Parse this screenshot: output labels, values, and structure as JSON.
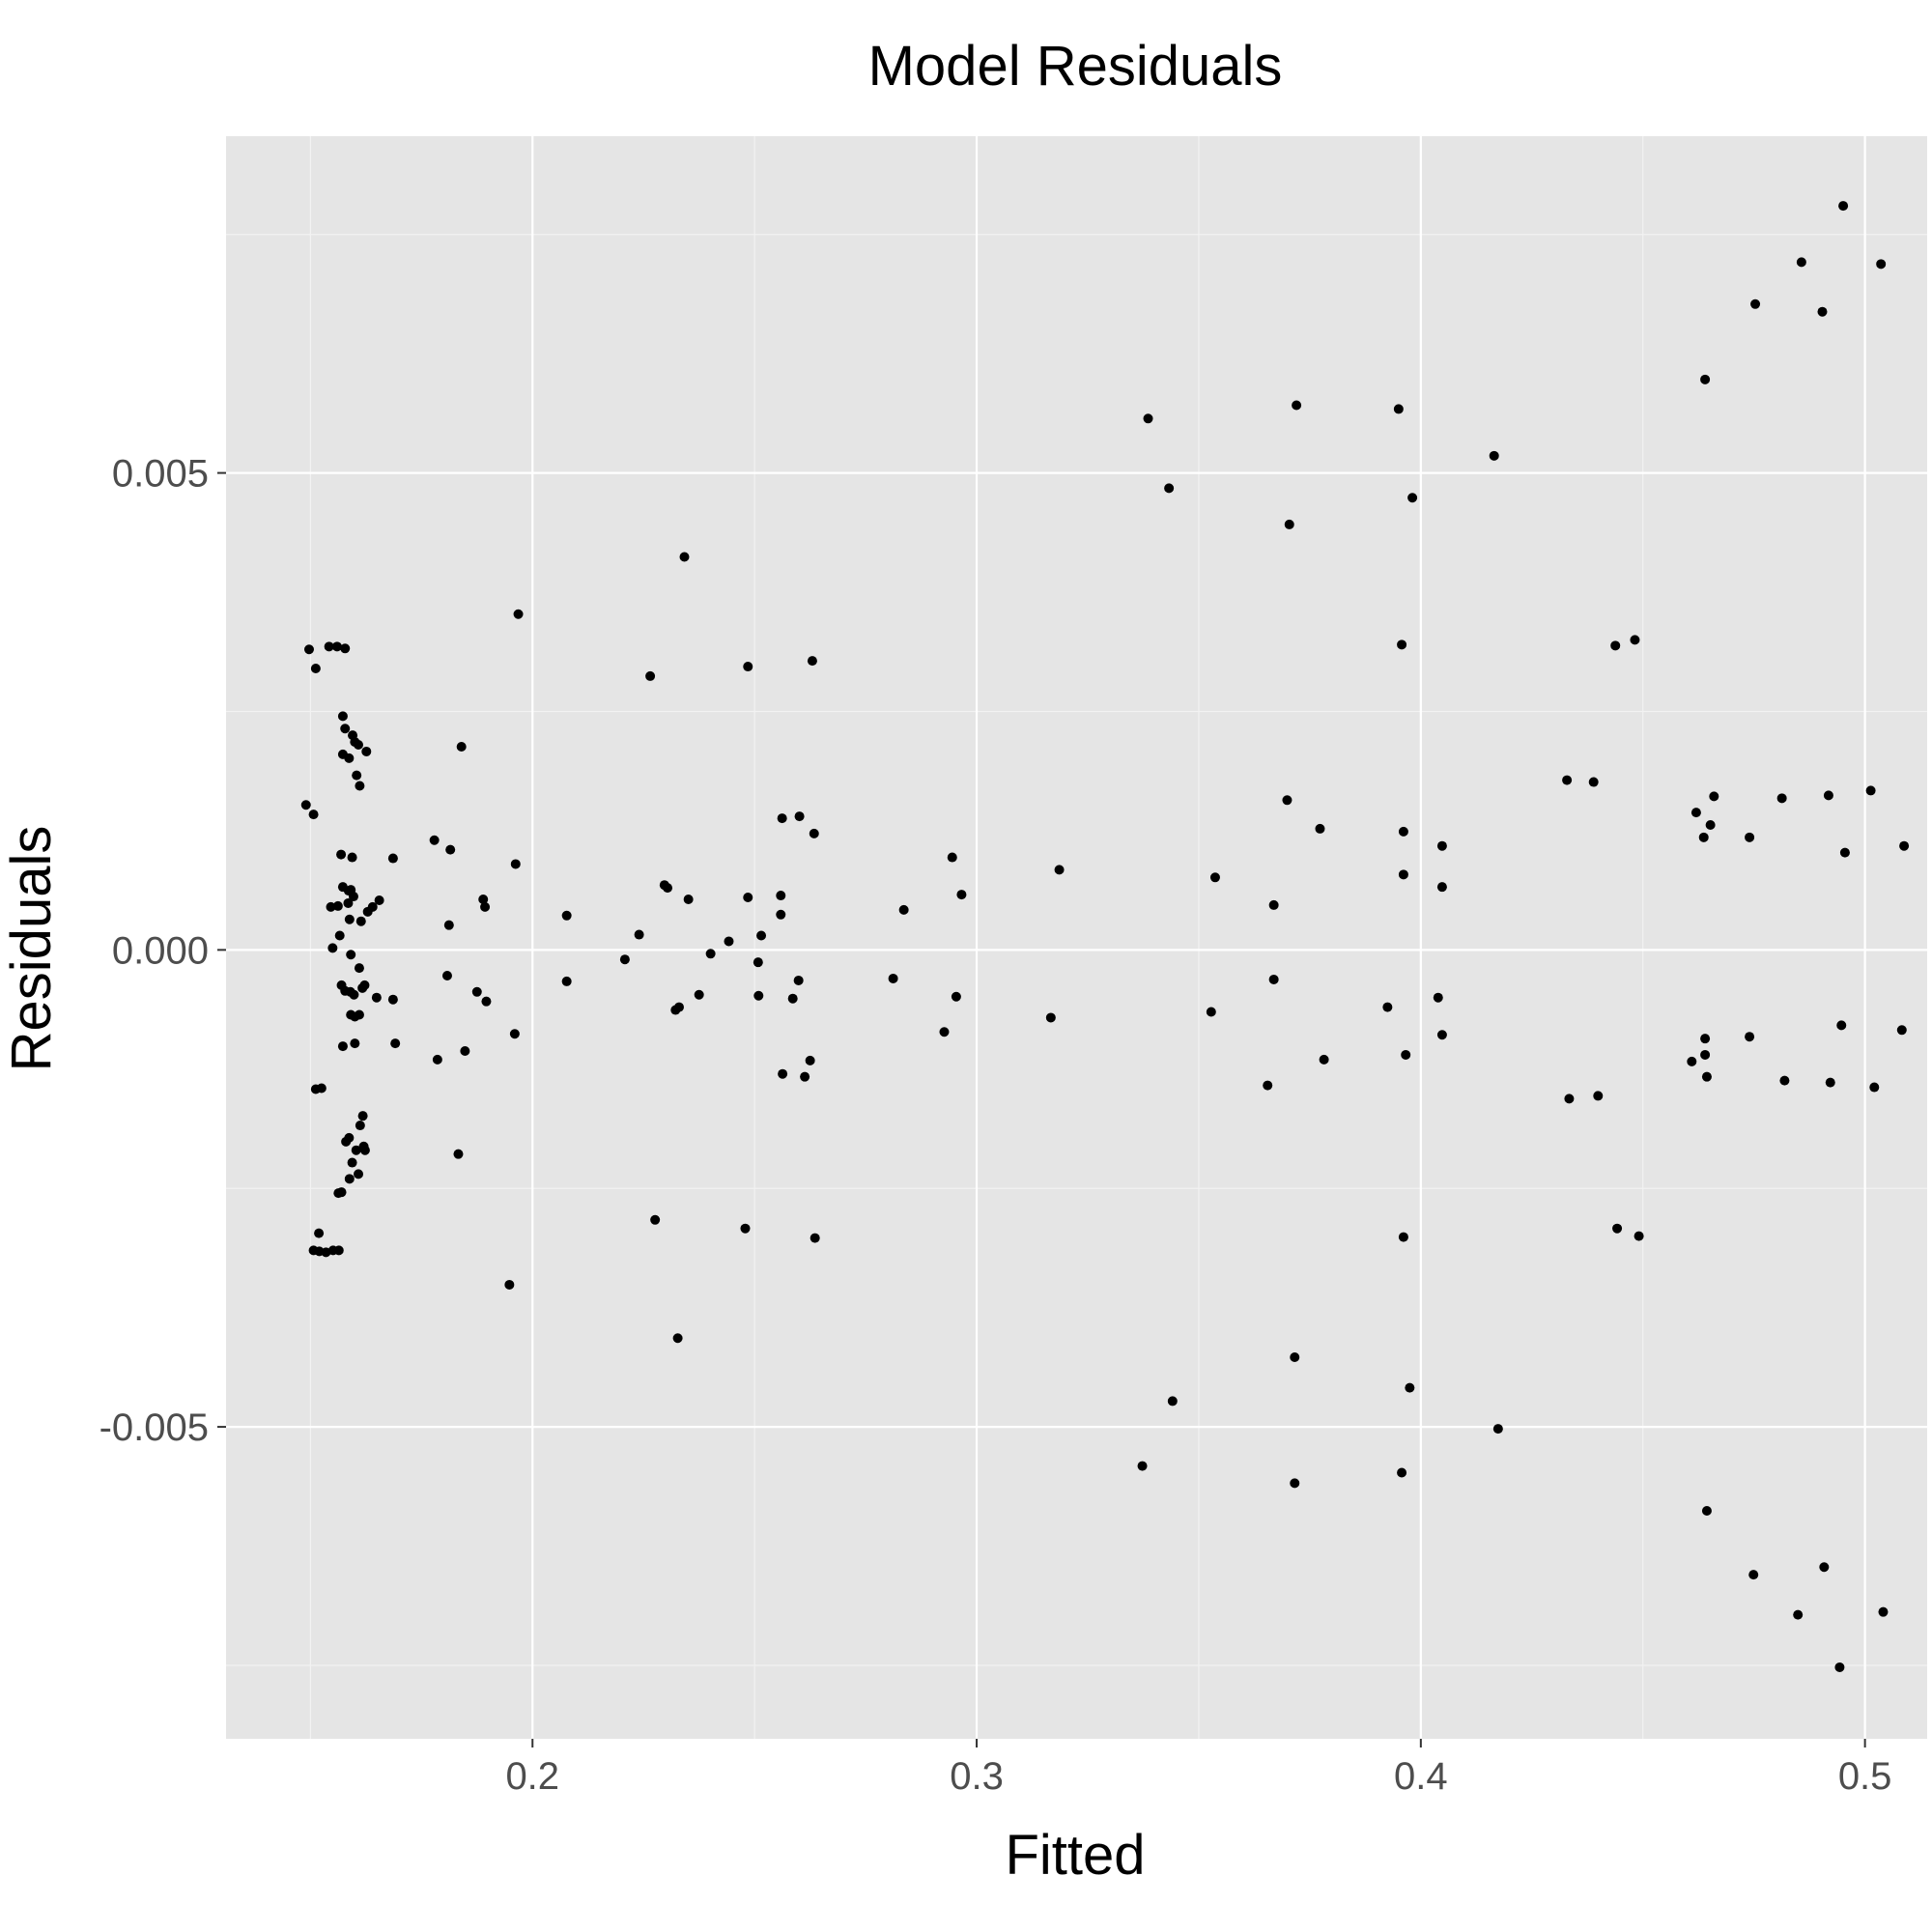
{
  "colors": {
    "panel_background": "#e5e5e5",
    "grid_major": "#ffffff",
    "grid_minor": "#f2f2f2",
    "point": "#000000",
    "tick_label": "#4d4d4d",
    "text": "#000000"
  },
  "chart_data": {
    "type": "scatter",
    "title": "Model Residuals",
    "xlabel": "Fitted",
    "ylabel": "Residuals",
    "xlim": [
      0.131,
      0.514
    ],
    "ylim": [
      -0.00827,
      0.00853
    ],
    "x_ticks": [
      0.2,
      0.3,
      0.4,
      0.5
    ],
    "x_tick_labels": [
      "0.2",
      "0.3",
      "0.4",
      "0.5"
    ],
    "y_ticks": [
      -0.005,
      0.0,
      0.005
    ],
    "y_tick_labels": [
      "-0.005",
      "0.000",
      "0.005"
    ],
    "grid": true,
    "legend": "none",
    "series": [
      {
        "points": [
          [
            0.1497,
            0.00315
          ],
          [
            0.1512,
            0.00295
          ],
          [
            0.1542,
            0.00318
          ],
          [
            0.156,
            0.00318
          ],
          [
            0.1578,
            0.00316
          ],
          [
            0.149,
            0.00152
          ],
          [
            0.1507,
            0.00142
          ],
          [
            0.1573,
            0.00245
          ],
          [
            0.1578,
            0.00232
          ],
          [
            0.1595,
            0.00225
          ],
          [
            0.1608,
            0.00215
          ],
          [
            0.1626,
            0.00208
          ],
          [
            0.1573,
            0.00205
          ],
          [
            0.1587,
            0.00201
          ],
          [
            0.16,
            0.00218
          ],
          [
            0.1604,
            0.00183
          ],
          [
            0.1611,
            0.00172
          ],
          [
            0.1569,
            0.001
          ],
          [
            0.1594,
            0.00097
          ],
          [
            0.1686,
            0.00096
          ],
          [
            0.1573,
            0.00066
          ],
          [
            0.1586,
            0.00062
          ],
          [
            0.1591,
            0.00063
          ],
          [
            0.1597,
            0.00056
          ],
          [
            0.1546,
            0.00045
          ],
          [
            0.1562,
            0.00046
          ],
          [
            0.1585,
            0.00049
          ],
          [
            0.164,
            0.00045
          ],
          [
            0.1655,
            0.00052
          ],
          [
            0.1629,
            0.0004
          ],
          [
            0.1614,
            0.0003
          ],
          [
            0.1588,
            0.00032
          ],
          [
            0.155,
            2e-05
          ],
          [
            0.1566,
            0.00015
          ],
          [
            0.1591,
            -5e-05
          ],
          [
            0.161,
            -0.00019
          ],
          [
            0.157,
            -0.00037
          ],
          [
            0.1578,
            -0.00043
          ],
          [
            0.159,
            -0.00044
          ],
          [
            0.1598,
            -0.00047
          ],
          [
            0.1617,
            -0.0004
          ],
          [
            0.1622,
            -0.00037
          ],
          [
            0.1649,
            -0.0005
          ],
          [
            0.1686,
            -0.00052
          ],
          [
            0.1591,
            -0.00068
          ],
          [
            0.16,
            -0.0007
          ],
          [
            0.161,
            -0.00068
          ],
          [
            0.1573,
            -0.00101
          ],
          [
            0.16,
            -0.00098
          ],
          [
            0.1691,
            -0.00098
          ],
          [
            0.1512,
            -0.00146
          ],
          [
            0.1525,
            -0.00145
          ],
          [
            0.1618,
            -0.00174
          ],
          [
            0.1612,
            -0.00184
          ],
          [
            0.158,
            -0.00201
          ],
          [
            0.1587,
            -0.00197
          ],
          [
            0.162,
            -0.00206
          ],
          [
            0.1603,
            -0.0021
          ],
          [
            0.1623,
            -0.0021
          ],
          [
            0.1594,
            -0.00223
          ],
          [
            0.1608,
            -0.00235
          ],
          [
            0.1588,
            -0.0024
          ],
          [
            0.157,
            -0.00254
          ],
          [
            0.1563,
            -0.00255
          ],
          [
            0.1519,
            -0.00297
          ],
          [
            0.1507,
            -0.00315
          ],
          [
            0.152,
            -0.00316
          ],
          [
            0.1535,
            -0.00317
          ],
          [
            0.1551,
            -0.00315
          ],
          [
            0.1564,
            -0.00315
          ],
          [
            0.1779,
            0.00115
          ],
          [
            0.1815,
            0.00105
          ],
          [
            0.184,
            0.00213
          ],
          [
            0.1812,
            0.00026
          ],
          [
            0.1889,
            0.00053
          ],
          [
            0.1893,
            0.00045
          ],
          [
            0.1962,
            0.0009
          ],
          [
            0.1968,
            0.00352
          ],
          [
            0.1808,
            -0.00027
          ],
          [
            0.1875,
            -0.00044
          ],
          [
            0.1896,
            -0.00054
          ],
          [
            0.1848,
            -0.00106
          ],
          [
            0.1786,
            -0.00115
          ],
          [
            0.1833,
            -0.00214
          ],
          [
            0.196,
            -0.00088
          ],
          [
            0.1948,
            -0.00351
          ],
          [
            0.2077,
            0.00036
          ],
          [
            0.2077,
            -0.00033
          ],
          [
            0.2208,
            -0.0001
          ],
          [
            0.224,
            0.00016
          ],
          [
            0.2265,
            0.00287
          ],
          [
            0.2297,
            0.00068
          ],
          [
            0.2304,
            0.00065
          ],
          [
            0.2351,
            0.00053
          ],
          [
            0.2342,
            0.00412
          ],
          [
            0.2322,
            -0.00063
          ],
          [
            0.233,
            -0.0006
          ],
          [
            0.2375,
            -0.00047
          ],
          [
            0.2401,
            -4e-05
          ],
          [
            0.2442,
            9e-05
          ],
          [
            0.2276,
            -0.00283
          ],
          [
            0.2327,
            -0.00407
          ],
          [
            0.2485,
            0.00055
          ],
          [
            0.2485,
            0.00297
          ],
          [
            0.2508,
            -0.00013
          ],
          [
            0.2515,
            0.00015
          ],
          [
            0.2509,
            -0.00048
          ],
          [
            0.2559,
            0.00057
          ],
          [
            0.2559,
            0.00037
          ],
          [
            0.2562,
            0.00138
          ],
          [
            0.2601,
            0.0014
          ],
          [
            0.2586,
            -0.00051
          ],
          [
            0.2599,
            -0.00032
          ],
          [
            0.2563,
            -0.0013
          ],
          [
            0.2613,
            -0.00133
          ],
          [
            0.2625,
            -0.00116
          ],
          [
            0.2634,
            0.00122
          ],
          [
            0.263,
            0.00303
          ],
          [
            0.2479,
            -0.00292
          ],
          [
            0.2636,
            -0.00302
          ],
          [
            0.2812,
            -0.0003
          ],
          [
            0.2836,
            0.00042
          ],
          [
            0.2927,
            -0.00086
          ],
          [
            0.2945,
            0.00097
          ],
          [
            0.2954,
            -0.00049
          ],
          [
            0.2966,
            0.00058
          ],
          [
            0.3167,
            -0.00071
          ],
          [
            0.3186,
            0.00084
          ],
          [
            0.3386,
            0.00557
          ],
          [
            0.3433,
            0.00484
          ],
          [
            0.3373,
            -0.00541
          ],
          [
            0.3441,
            -0.00473
          ],
          [
            0.3537,
            0.00076
          ],
          [
            0.3528,
            -0.00065
          ],
          [
            0.3655,
            -0.00142
          ],
          [
            0.3669,
            0.00047
          ],
          [
            0.3669,
            -0.00031
          ],
          [
            0.3699,
            0.00157
          ],
          [
            0.3704,
            0.00446
          ],
          [
            0.372,
            0.00571
          ],
          [
            0.3716,
            -0.00427
          ],
          [
            0.3716,
            -0.00559
          ],
          [
            0.3773,
            0.00127
          ],
          [
            0.3782,
            -0.00115
          ],
          [
            0.3925,
            -0.0006
          ],
          [
            0.395,
            0.00567
          ],
          [
            0.3957,
            0.0032
          ],
          [
            0.3961,
            0.00124
          ],
          [
            0.3961,
            0.00079
          ],
          [
            0.3966,
            -0.0011
          ],
          [
            0.3961,
            -0.00301
          ],
          [
            0.3981,
            0.00474
          ],
          [
            0.3975,
            -0.00459
          ],
          [
            0.3957,
            -0.00548
          ],
          [
            0.4039,
            -0.0005
          ],
          [
            0.4048,
            0.00109
          ],
          [
            0.4048,
            0.00066
          ],
          [
            0.4048,
            -0.00089
          ],
          [
            0.4165,
            0.00518
          ],
          [
            0.4174,
            -0.00502
          ],
          [
            0.4329,
            0.00178
          ],
          [
            0.4334,
            -0.00156
          ],
          [
            0.4389,
            0.00176
          ],
          [
            0.4399,
            -0.00153
          ],
          [
            0.4438,
            0.00319
          ],
          [
            0.4482,
            0.00325
          ],
          [
            0.4442,
            -0.00292
          ],
          [
            0.4491,
            -0.003
          ],
          [
            0.461,
            -0.00117
          ],
          [
            0.462,
            0.00144
          ],
          [
            0.4637,
            0.00118
          ],
          [
            0.464,
            0.00598
          ],
          [
            0.464,
            -0.00093
          ],
          [
            0.464,
            -0.0011
          ],
          [
            0.4644,
            -0.00133
          ],
          [
            0.4644,
            -0.00588
          ],
          [
            0.4652,
            0.00131
          ],
          [
            0.466,
            0.00161
          ],
          [
            0.474,
            0.00118
          ],
          [
            0.474,
            -0.00091
          ],
          [
            0.4753,
            0.00677
          ],
          [
            0.4749,
            -0.00655
          ],
          [
            0.4813,
            0.00159
          ],
          [
            0.4819,
            -0.00137
          ],
          [
            0.4857,
            0.00721
          ],
          [
            0.4849,
            -0.00697
          ],
          [
            0.4904,
            0.00669
          ],
          [
            0.4908,
            -0.00647
          ],
          [
            0.4918,
            0.00162
          ],
          [
            0.4922,
            -0.00139
          ],
          [
            0.4951,
            0.0078
          ],
          [
            0.4943,
            -0.00752
          ],
          [
            0.4955,
            0.00102
          ],
          [
            0.4947,
            -0.00079
          ],
          [
            0.5013,
            0.00167
          ],
          [
            0.5021,
            -0.00144
          ],
          [
            0.5036,
            0.00719
          ],
          [
            0.5041,
            -0.00694
          ],
          [
            0.5088,
            0.00109
          ],
          [
            0.5083,
            -0.00084
          ]
        ]
      }
    ]
  }
}
